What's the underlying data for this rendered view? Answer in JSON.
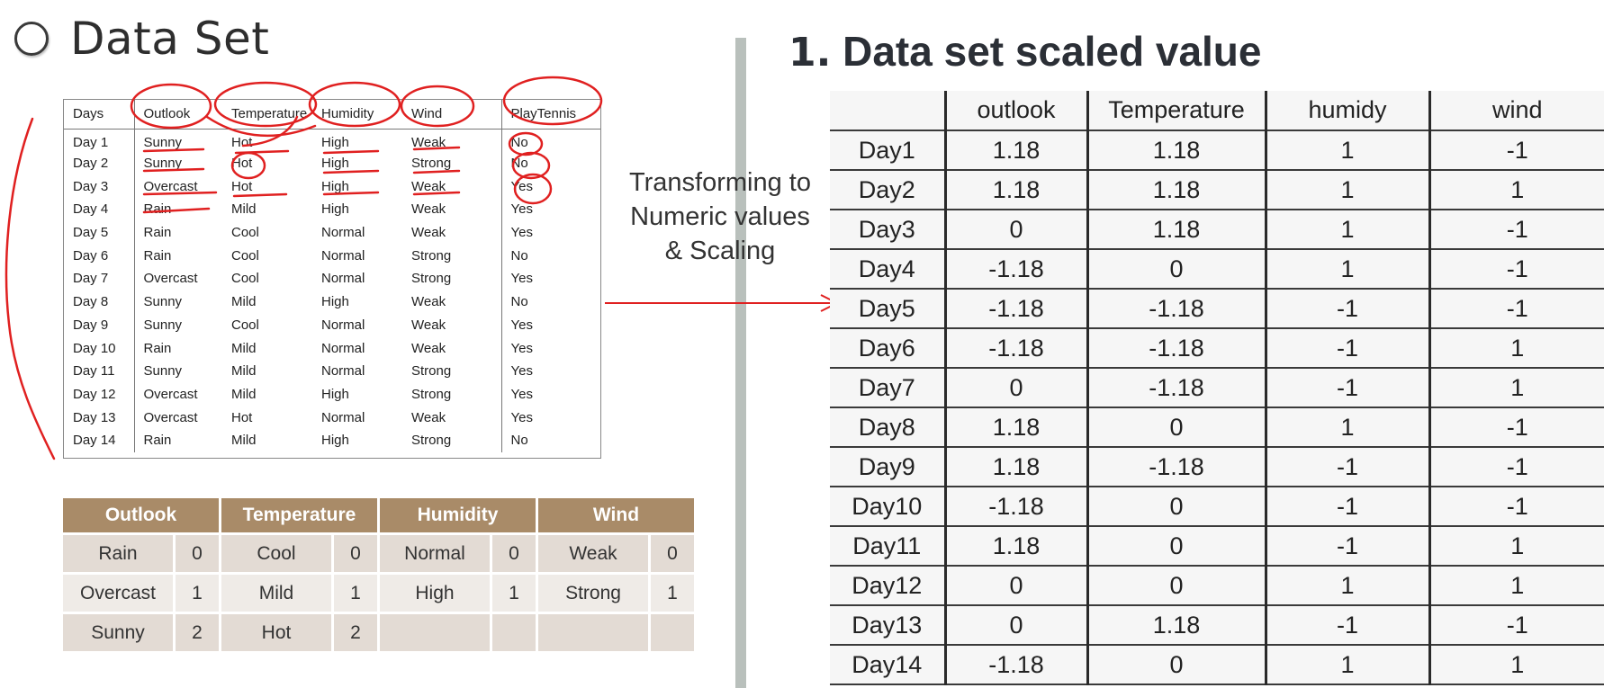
{
  "left": {
    "title": "Data Set",
    "orig_table": {
      "headers": [
        "Days",
        "Outlook",
        "Temperature",
        "Humidity",
        "Wind",
        "PlayTennis"
      ],
      "rows": [
        [
          "Day 1",
          "Sunny",
          "Hot",
          "High",
          "Weak",
          "No"
        ],
        [
          "Day 2",
          "Sunny",
          "Hot",
          "High",
          "Strong",
          "No"
        ],
        [
          "Day 3",
          "Overcast",
          "Hot",
          "High",
          "Weak",
          "Yes"
        ],
        [
          "Day 4",
          "Rain",
          "Mild",
          "High",
          "Weak",
          "Yes"
        ],
        [
          "Day 5",
          "Rain",
          "Cool",
          "Normal",
          "Weak",
          "Yes"
        ],
        [
          "Day 6",
          "Rain",
          "Cool",
          "Normal",
          "Strong",
          "No"
        ],
        [
          "Day 7",
          "Overcast",
          "Cool",
          "Normal",
          "Strong",
          "Yes"
        ],
        [
          "Day 8",
          "Sunny",
          "Mild",
          "High",
          "Weak",
          "No"
        ],
        [
          "Day 9",
          "Sunny",
          "Cool",
          "Normal",
          "Weak",
          "Yes"
        ],
        [
          "Day 10",
          "Rain",
          "Mild",
          "Normal",
          "Weak",
          "Yes"
        ],
        [
          "Day 11",
          "Sunny",
          "Mild",
          "Normal",
          "Strong",
          "Yes"
        ],
        [
          "Day 12",
          "Overcast",
          "Mild",
          "High",
          "Strong",
          "Yes"
        ],
        [
          "Day 13",
          "Overcast",
          "Hot",
          "Normal",
          "Weak",
          "Yes"
        ],
        [
          "Day 14",
          "Rain",
          "Mild",
          "High",
          "Strong",
          "No"
        ]
      ]
    },
    "encoding_table": {
      "headers": [
        "Outlook",
        "Temperature",
        "Humidity",
        "Wind"
      ],
      "rows": [
        [
          "Rain",
          "0",
          "Cool",
          "0",
          "Normal",
          "0",
          "Weak",
          "0"
        ],
        [
          "Overcast",
          "1",
          "Mild",
          "1",
          "High",
          "1",
          "Strong",
          "1"
        ],
        [
          "Sunny",
          "2",
          "Hot",
          "2",
          "",
          "",
          "",
          ""
        ]
      ]
    }
  },
  "caption": {
    "line1": "Transforming to",
    "line2": "Numeric values",
    "line3": "& Scaling"
  },
  "right": {
    "title_number": "1.",
    "title_text": "Data set scaled value",
    "scaled_table": {
      "headers": [
        "",
        "outlook",
        "Temperature",
        "humidy",
        "wind"
      ],
      "rows": [
        [
          "Day1",
          "1.18",
          "1.18",
          "1",
          "-1"
        ],
        [
          "Day2",
          "1.18",
          "1.18",
          "1",
          "1"
        ],
        [
          "Day3",
          "0",
          "1.18",
          "1",
          "-1"
        ],
        [
          "Day4",
          "-1.18",
          "0",
          "1",
          "-1"
        ],
        [
          "Day5",
          "-1.18",
          "-1.18",
          "-1",
          "-1"
        ],
        [
          "Day6",
          "-1.18",
          "-1.18",
          "-1",
          "1"
        ],
        [
          "Day7",
          "0",
          "-1.18",
          "-1",
          "1"
        ],
        [
          "Day8",
          "1.18",
          "0",
          "1",
          "-1"
        ],
        [
          "Day9",
          "1.18",
          "-1.18",
          "-1",
          "-1"
        ],
        [
          "Day10",
          "-1.18",
          "0",
          "-1",
          "-1"
        ],
        [
          "Day11",
          "1.18",
          "0",
          "-1",
          "1"
        ],
        [
          "Day12",
          "0",
          "0",
          "1",
          "1"
        ],
        [
          "Day13",
          "0",
          "1.18",
          "-1",
          "-1"
        ],
        [
          "Day14",
          "-1.18",
          "0",
          "1",
          "1"
        ]
      ]
    }
  },
  "colors": {
    "annotation_red": "#e02020",
    "legend_header": "#a98b68",
    "divider": "#b9c0bc"
  }
}
